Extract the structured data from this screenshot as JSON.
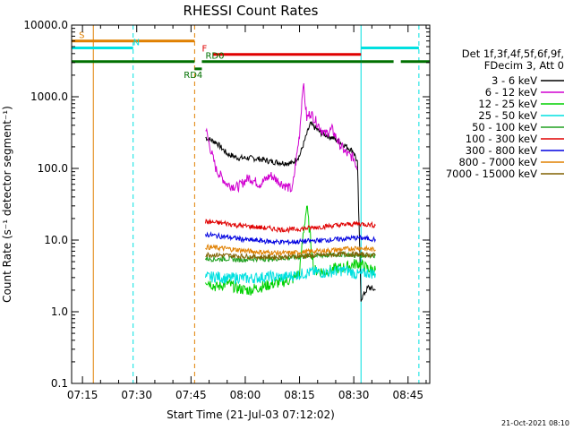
{
  "chart_data": {
    "type": "line",
    "title": "RHESSI Count Rates",
    "xlabel": "Start Time (21-Jul-03 07:12:02)",
    "ylabel": "Count Rate (s⁻¹ detector segment⁻¹)",
    "yscale": "log",
    "ylim": [
      0.1,
      10000
    ],
    "xlim": [
      "07:12",
      "08:51"
    ],
    "x_ticks": [
      "07:15",
      "07:30",
      "07:45",
      "08:00",
      "08:15",
      "08:30",
      "08:45"
    ],
    "y_ticks": [
      "0.1",
      "1.0",
      "10.0",
      "100.0",
      "1000.0",
      "10000.0"
    ],
    "legend_header": [
      "Det 1f,3f,4f,5f,6f,9f,",
      "FDecim 3, Att 0"
    ],
    "legend_position": "right",
    "footer_timestamp": "21-Oct-2021 08:10",
    "series": [
      {
        "name": "3 - 6 keV",
        "color": "#000000",
        "x": [
          "07:49",
          "07:52",
          "07:55",
          "07:58",
          "08:01",
          "08:04",
          "08:07",
          "08:10",
          "08:13",
          "08:15",
          "08:18",
          "08:21",
          "08:24",
          "08:27",
          "08:30",
          "08:31",
          "08:32",
          "08:34",
          "08:36"
        ],
        "values": [
          270,
          230,
          160,
          140,
          140,
          135,
          125,
          120,
          118,
          150,
          420,
          310,
          270,
          220,
          170,
          120,
          1.5,
          2.2,
          2.0
        ]
      },
      {
        "name": "6 - 12 keV",
        "color": "#d000d0",
        "x": [
          "07:49",
          "07:50",
          "07:52",
          "07:55",
          "07:58",
          "08:01",
          "08:04",
          "08:07",
          "08:10",
          "08:13",
          "08:15",
          "08:16",
          "08:17",
          "08:18",
          "08:20",
          "08:22",
          "08:24",
          "08:26",
          "08:28",
          "08:30",
          "08:31"
        ],
        "values": [
          380,
          220,
          95,
          60,
          55,
          75,
          60,
          80,
          62,
          50,
          300,
          1600,
          500,
          600,
          420,
          300,
          350,
          220,
          160,
          140,
          100
        ]
      },
      {
        "name": "12 - 25 keV",
        "color": "#00d000",
        "x": [
          "07:49",
          "07:52",
          "07:55",
          "07:58",
          "08:01",
          "08:04",
          "08:07",
          "08:10",
          "08:13",
          "08:15",
          "08:16",
          "08:17",
          "08:19",
          "08:22",
          "08:25",
          "08:28",
          "08:31",
          "08:34",
          "08:36"
        ],
        "values": [
          2.8,
          2.2,
          2.5,
          2.1,
          2.0,
          2.2,
          2.4,
          2.6,
          2.8,
          3.5,
          12,
          30,
          3.8,
          3.6,
          4.0,
          4.2,
          4.8,
          4.0,
          3.8
        ]
      },
      {
        "name": "25 - 50 keV",
        "color": "#00e0e0",
        "x": [
          "07:49",
          "07:52",
          "07:55",
          "07:58",
          "08:01",
          "08:04",
          "08:07",
          "08:10",
          "08:13",
          "08:16",
          "08:19",
          "08:22",
          "08:25",
          "08:28",
          "08:31",
          "08:34",
          "08:36"
        ],
        "values": [
          3.0,
          3.1,
          2.9,
          3.0,
          2.9,
          3.0,
          3.1,
          3.0,
          3.2,
          3.4,
          3.6,
          3.5,
          3.7,
          3.8,
          3.3,
          3.5,
          3.4
        ]
      },
      {
        "name": "50 - 100 keV",
        "color": "#20a020",
        "x": [
          "07:49",
          "07:52",
          "07:55",
          "07:58",
          "08:01",
          "08:04",
          "08:07",
          "08:10",
          "08:13",
          "08:16",
          "08:19",
          "08:22",
          "08:25",
          "08:28",
          "08:31",
          "08:34",
          "08:36"
        ],
        "values": [
          5.5,
          5.4,
          5.5,
          5.3,
          5.4,
          5.5,
          5.4,
          5.6,
          5.7,
          5.9,
          6.0,
          6.1,
          6.2,
          6.3,
          6.0,
          6.2,
          6.1
        ]
      },
      {
        "name": "100 - 300 keV",
        "color": "#e00000",
        "x": [
          "07:49",
          "07:52",
          "07:55",
          "07:58",
          "08:01",
          "08:04",
          "08:07",
          "08:10",
          "08:13",
          "08:16",
          "08:19",
          "08:22",
          "08:25",
          "08:28",
          "08:31",
          "08:34",
          "08:36"
        ],
        "values": [
          18,
          17.5,
          17,
          16,
          15.5,
          15,
          14.5,
          14,
          14,
          14.5,
          15,
          15.5,
          16,
          16.5,
          17,
          16.5,
          16
        ]
      },
      {
        "name": "300 - 800 keV",
        "color": "#0000e0",
        "x": [
          "07:49",
          "07:52",
          "07:55",
          "07:58",
          "08:01",
          "08:04",
          "08:07",
          "08:10",
          "08:13",
          "08:16",
          "08:19",
          "08:22",
          "08:25",
          "08:28",
          "08:31",
          "08:34",
          "08:36"
        ],
        "values": [
          12,
          11.5,
          11,
          10.5,
          10,
          9.8,
          9.5,
          9.4,
          9.4,
          9.6,
          9.8,
          10,
          10.2,
          10.5,
          10.8,
          10.5,
          10.2
        ]
      },
      {
        "name": "800 - 7000 keV",
        "color": "#e08000",
        "x": [
          "07:49",
          "07:52",
          "07:55",
          "07:58",
          "08:01",
          "08:04",
          "08:07",
          "08:10",
          "08:13",
          "08:16",
          "08:19",
          "08:22",
          "08:25",
          "08:28",
          "08:31",
          "08:34",
          "08:36"
        ],
        "values": [
          8.0,
          7.8,
          7.6,
          7.3,
          7.0,
          6.8,
          6.7,
          6.6,
          6.6,
          6.8,
          7.0,
          7.1,
          7.3,
          7.5,
          7.8,
          7.5,
          7.3
        ]
      },
      {
        "name": "7000 - 15000 keV",
        "color": "#806000",
        "x": [
          "07:49",
          "07:52",
          "07:55",
          "07:58",
          "08:01",
          "08:04",
          "08:07",
          "08:10",
          "08:13",
          "08:16",
          "08:19",
          "08:22",
          "08:25",
          "08:28",
          "08:31",
          "08:34",
          "08:36"
        ],
        "values": [
          6.3,
          6.2,
          6.1,
          6.0,
          5.9,
          5.8,
          5.8,
          5.8,
          5.9,
          6.0,
          6.1,
          6.2,
          6.3,
          6.4,
          6.3,
          6.2,
          6.1
        ]
      }
    ],
    "vertical_lines": [
      {
        "x": "07:12",
        "color": "#00e0e0",
        "style": "solid"
      },
      {
        "x": "07:18",
        "color": "#e08000",
        "style": "solid"
      },
      {
        "x": "07:29",
        "color": "#00e0e0",
        "style": "dashed"
      },
      {
        "x": "07:46",
        "color": "#e08000",
        "style": "dashed"
      },
      {
        "x": "08:32",
        "color": "#00e0e0",
        "style": "solid"
      },
      {
        "x": "08:48",
        "color": "#00e0e0",
        "style": "dashed"
      }
    ],
    "flag_bars": [
      {
        "label": "S",
        "color": "#e08000",
        "y": 6000,
        "segments": [
          [
            "07:12",
            "07:46"
          ]
        ],
        "label_at": "07:14"
      },
      {
        "label": "N",
        "color": "#00e0e0",
        "y": 4800,
        "segments": [
          [
            "07:12",
            "07:29"
          ],
          [
            "08:32",
            "08:48"
          ]
        ],
        "label_at": "07:29"
      },
      {
        "label": "F",
        "color": "#e00000",
        "y": 3900,
        "segments": [
          [
            "07:51",
            "08:32"
          ]
        ],
        "label_at": "07:48"
      },
      {
        "label": "RD0",
        "color": "#007000",
        "y": 3100,
        "segments": [
          [
            "07:12",
            "07:46"
          ],
          [
            "07:48",
            "08:32"
          ],
          [
            "08:32",
            "08:41"
          ],
          [
            "08:43",
            "08:51"
          ]
        ],
        "label_at": "07:49"
      },
      {
        "label": "RD4",
        "color": "#007000",
        "y": 2450,
        "segments": [
          [
            "07:46",
            "07:48"
          ]
        ],
        "label_at": "07:43"
      }
    ]
  }
}
